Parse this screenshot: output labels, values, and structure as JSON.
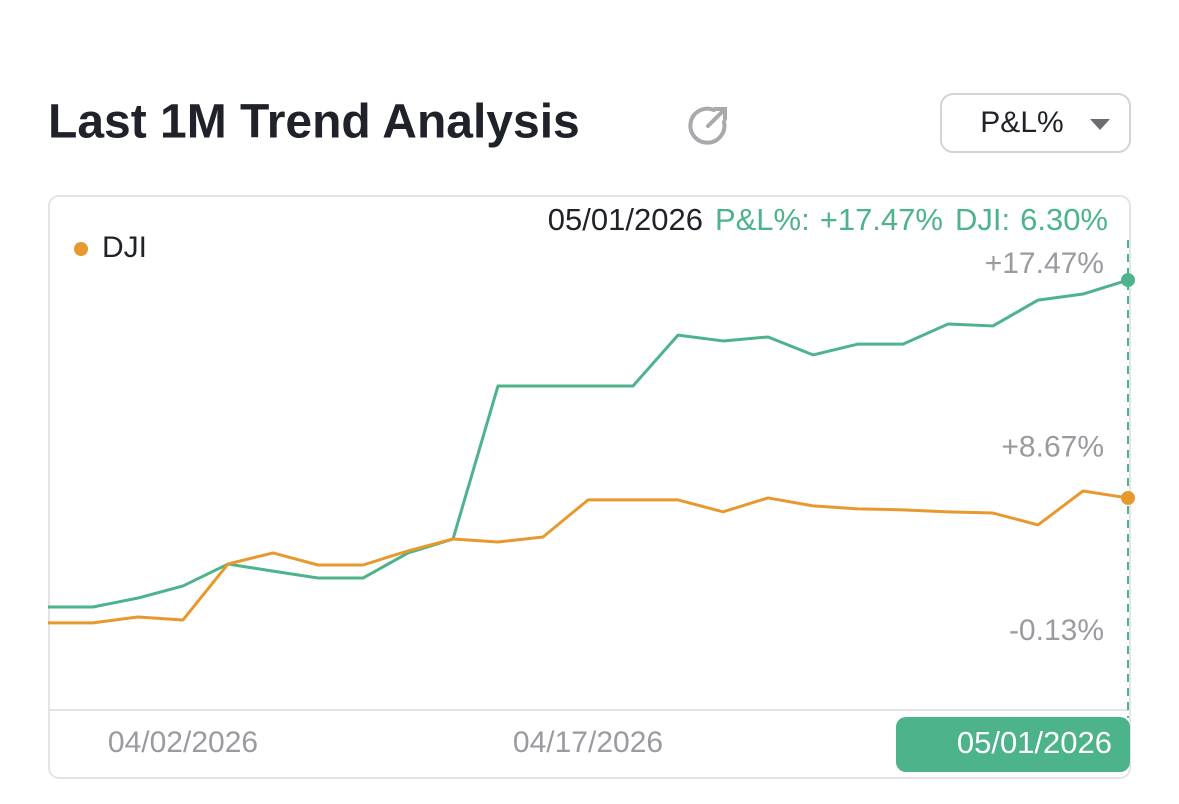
{
  "header": {
    "title": "Last 1M Trend Analysis",
    "dropdown": "P&L%"
  },
  "chart_data": {
    "type": "line",
    "categories": [
      null,
      null,
      null,
      "04/02/2026",
      null,
      null,
      null,
      null,
      null,
      null,
      null,
      null,
      "04/17/2026",
      null,
      null,
      null,
      null,
      null,
      null,
      null,
      null,
      null,
      null,
      null,
      "05/01/2026"
    ],
    "series": [
      {
        "name": "P&L%",
        "color": "#4cb38a",
        "in_legend": false,
        "values": [
          1.79,
          1.79,
          2.22,
          2.8,
          3.85,
          3.51,
          3.18,
          3.18,
          4.38,
          5.05,
          12.39,
          12.39,
          12.39,
          12.39,
          14.83,
          14.55,
          14.74,
          13.88,
          14.4,
          14.4,
          15.36,
          15.27,
          16.51,
          16.8,
          17.47
        ]
      },
      {
        "name": "DJI",
        "color": "#e8992e",
        "in_legend": true,
        "axis": "y2",
        "values": [
          0,
          0,
          0.3,
          0.15,
          2.97,
          3.53,
          2.92,
          2.92,
          3.63,
          4.23,
          4.08,
          4.33,
          6.2,
          6.2,
          6.2,
          5.6,
          6.3,
          5.9,
          5.75,
          5.7,
          5.6,
          5.54,
          4.94,
          6.65,
          6.3
        ]
      }
    ],
    "ylim": [
      -3.15,
      21.31
    ],
    "yticks": [
      {
        "value": 17.47,
        "label": "+17.47%"
      },
      {
        "value": 8.67,
        "label": "+8.67%"
      },
      {
        "value": -0.13,
        "label": "-0.13%"
      }
    ],
    "y2lim": [
      -4.39,
      21.32
    ],
    "grid": false,
    "tooltip": {
      "index": 24,
      "items": [
        {
          "label": "P&L%:",
          "value": "+17.47%"
        },
        {
          "label": "DJI:",
          "value": "6.30%"
        }
      ]
    }
  }
}
